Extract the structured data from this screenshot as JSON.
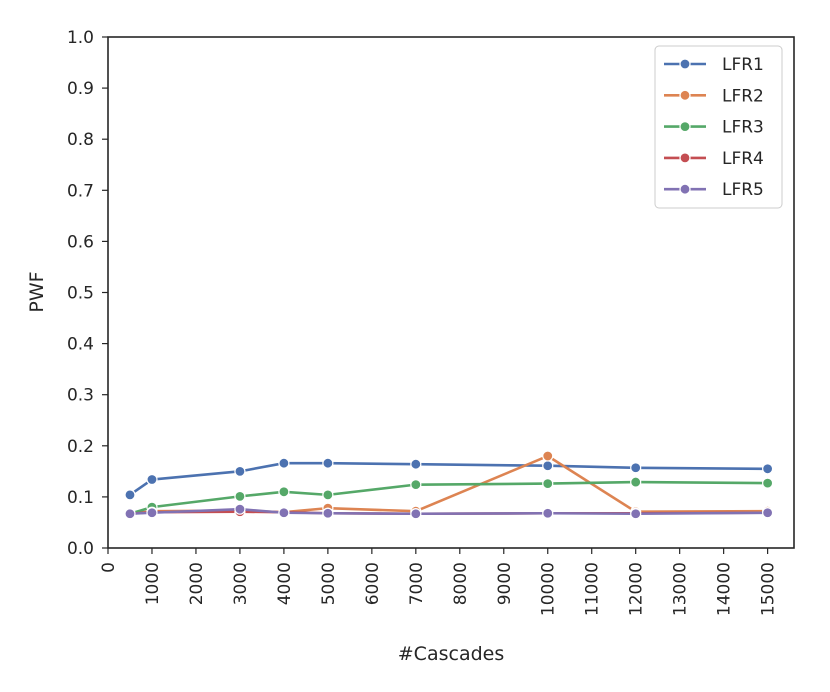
{
  "chart_data": {
    "type": "line",
    "xlabel": "#Cascades",
    "ylabel": "PWF",
    "title": "",
    "xlim": [
      0,
      15600
    ],
    "ylim": [
      0.0,
      1.0
    ],
    "xticks": [
      0,
      1000,
      2000,
      3000,
      4000,
      5000,
      6000,
      7000,
      8000,
      9000,
      10000,
      11000,
      12000,
      13000,
      14000,
      15000
    ],
    "yticks": [
      "0.0",
      "0.1",
      "0.2",
      "0.3",
      "0.4",
      "0.5",
      "0.6",
      "0.7",
      "0.8",
      "0.9",
      "1.0"
    ],
    "grid": false,
    "legend_position": "top-right",
    "x": [
      500,
      1000,
      3000,
      4000,
      5000,
      7000,
      10000,
      12000,
      15000
    ],
    "series": [
      {
        "name": "LFR1",
        "color": "#4c72b0",
        "values": [
          0.104,
          0.134,
          0.15,
          0.166,
          0.166,
          0.164,
          0.161,
          0.157,
          0.155
        ]
      },
      {
        "name": "LFR2",
        "color": "#dd8452",
        "values": [
          0.067,
          0.072,
          0.073,
          0.07,
          0.078,
          0.072,
          0.18,
          0.071,
          0.072
        ]
      },
      {
        "name": "LFR3",
        "color": "#55a868",
        "values": [
          0.067,
          0.08,
          0.101,
          0.11,
          0.104,
          0.124,
          0.126,
          0.129,
          0.127
        ]
      },
      {
        "name": "LFR4",
        "color": "#c44e52",
        "values": [
          0.067,
          0.07,
          0.071,
          0.07,
          0.068,
          0.067,
          0.068,
          0.068,
          0.069
        ]
      },
      {
        "name": "LFR5",
        "color": "#8172b3",
        "values": [
          0.067,
          0.069,
          0.076,
          0.069,
          0.068,
          0.067,
          0.068,
          0.067,
          0.069
        ]
      }
    ]
  }
}
